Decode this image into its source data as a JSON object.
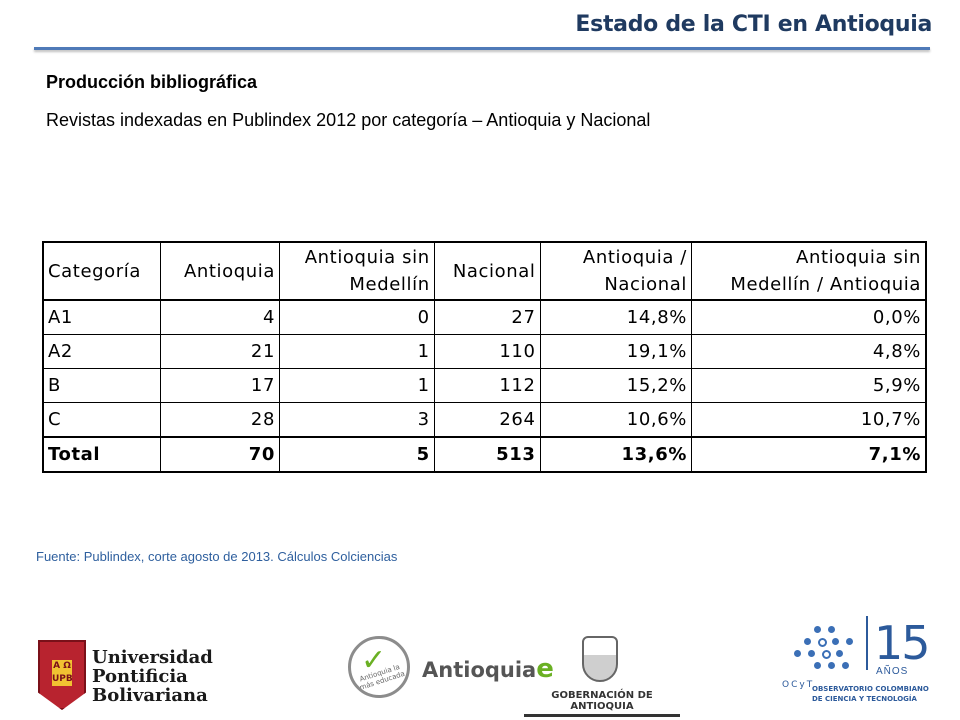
{
  "header": {
    "title": "Estado de la CTI en Antioquia"
  },
  "content": {
    "heading": "Producción bibliográfica",
    "subheading": "Revistas indexadas en Publindex 2012 por categoría – Antioquia y Nacional"
  },
  "table": {
    "headers": [
      [
        "Categoría"
      ],
      [
        "Antioquia"
      ],
      [
        "Antioquia sin",
        "Medellín"
      ],
      [
        "Nacional"
      ],
      [
        "Antioquia /",
        "Nacional"
      ],
      [
        "Antioquia sin",
        "Medellín / Antioquia"
      ]
    ],
    "rows": [
      [
        "A1",
        "4",
        "0",
        "27",
        "14,8%",
        "0,0%"
      ],
      [
        "A2",
        "21",
        "1",
        "110",
        "19,1%",
        "4,8%"
      ],
      [
        "B",
        "17",
        "1",
        "112",
        "15,2%",
        "5,9%"
      ],
      [
        "C",
        "28",
        "3",
        "264",
        "10,6%",
        "10,7%"
      ]
    ],
    "total": [
      "Total",
      "70",
      "5",
      "513",
      "13,6%",
      "7,1%"
    ]
  },
  "source": "Fuente: Publindex, corte agosto de 2013. Cálculos Colciencias",
  "logos": {
    "upb": {
      "name_lines": [
        "Universidad",
        "Pontificia",
        "Bolivariana"
      ],
      "shield_text": "A Ω UPB",
      "color": "#b8232f"
    },
    "antioquia": {
      "seal_text": "Antioquia la más educada",
      "word": "Antioquia",
      "mark": "e",
      "color": "#6ab023"
    },
    "gobernacion": {
      "label": "GOBERNACIÓN DE ANTIOQUIA"
    },
    "ocyt": {
      "number": "15",
      "anos": "AÑOS",
      "brand": "OCyT",
      "name": "OBSERVATORIO COLOMBIANO DE CIENCIA Y TECNOLOGÍA",
      "color": "#2c5a9b"
    }
  }
}
